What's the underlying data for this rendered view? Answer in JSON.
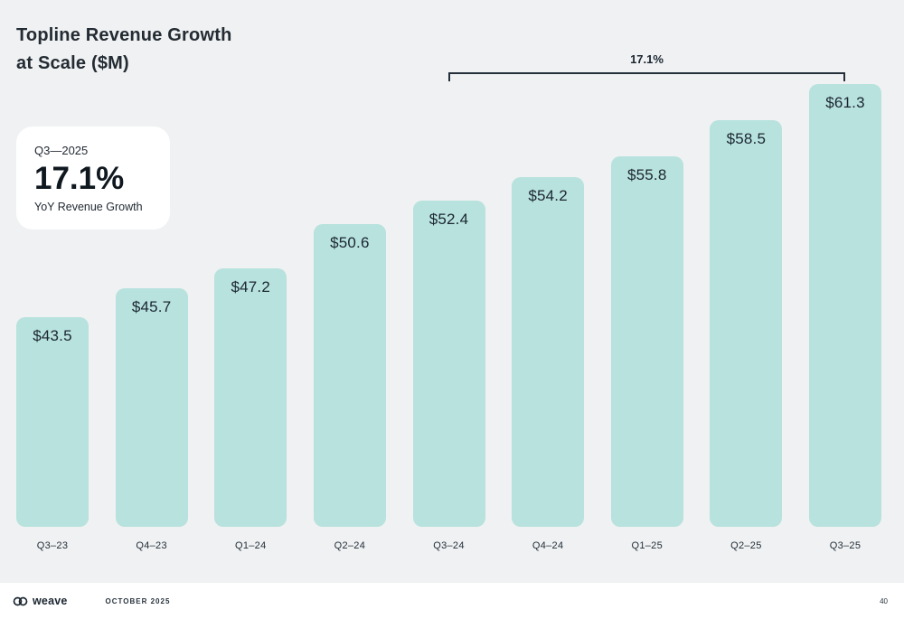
{
  "slide": {
    "title_line1": "Topline Revenue Growth",
    "title_line2": "at Scale ($M)",
    "callout": {
      "period": "Q3—2025",
      "value": "17.1%",
      "label": "YoY Revenue Growth"
    },
    "footer": {
      "brand": "weave",
      "date": "OCTOBER 2025",
      "page": "40"
    }
  },
  "chart_data": {
    "type": "bar",
    "title": "Topline Revenue Growth at Scale ($M)",
    "unit": "$M",
    "categories": [
      "Q3–23",
      "Q4–23",
      "Q1–24",
      "Q2–24",
      "Q3–24",
      "Q4–24",
      "Q1–25",
      "Q2–25",
      "Q3–25"
    ],
    "values": [
      43.5,
      45.7,
      47.2,
      50.6,
      52.4,
      54.2,
      55.8,
      58.5,
      61.3
    ],
    "value_labels": [
      "$43.5",
      "$45.7",
      "$47.2",
      "$50.6",
      "$52.4",
      "$54.2",
      "$55.8",
      "$58.5",
      "$61.3"
    ],
    "bar_color": "#b8e2dd",
    "grid": false,
    "legend": false,
    "annotation": {
      "label": "17.1%",
      "from": "Q3–24",
      "to": "Q3–25"
    }
  }
}
